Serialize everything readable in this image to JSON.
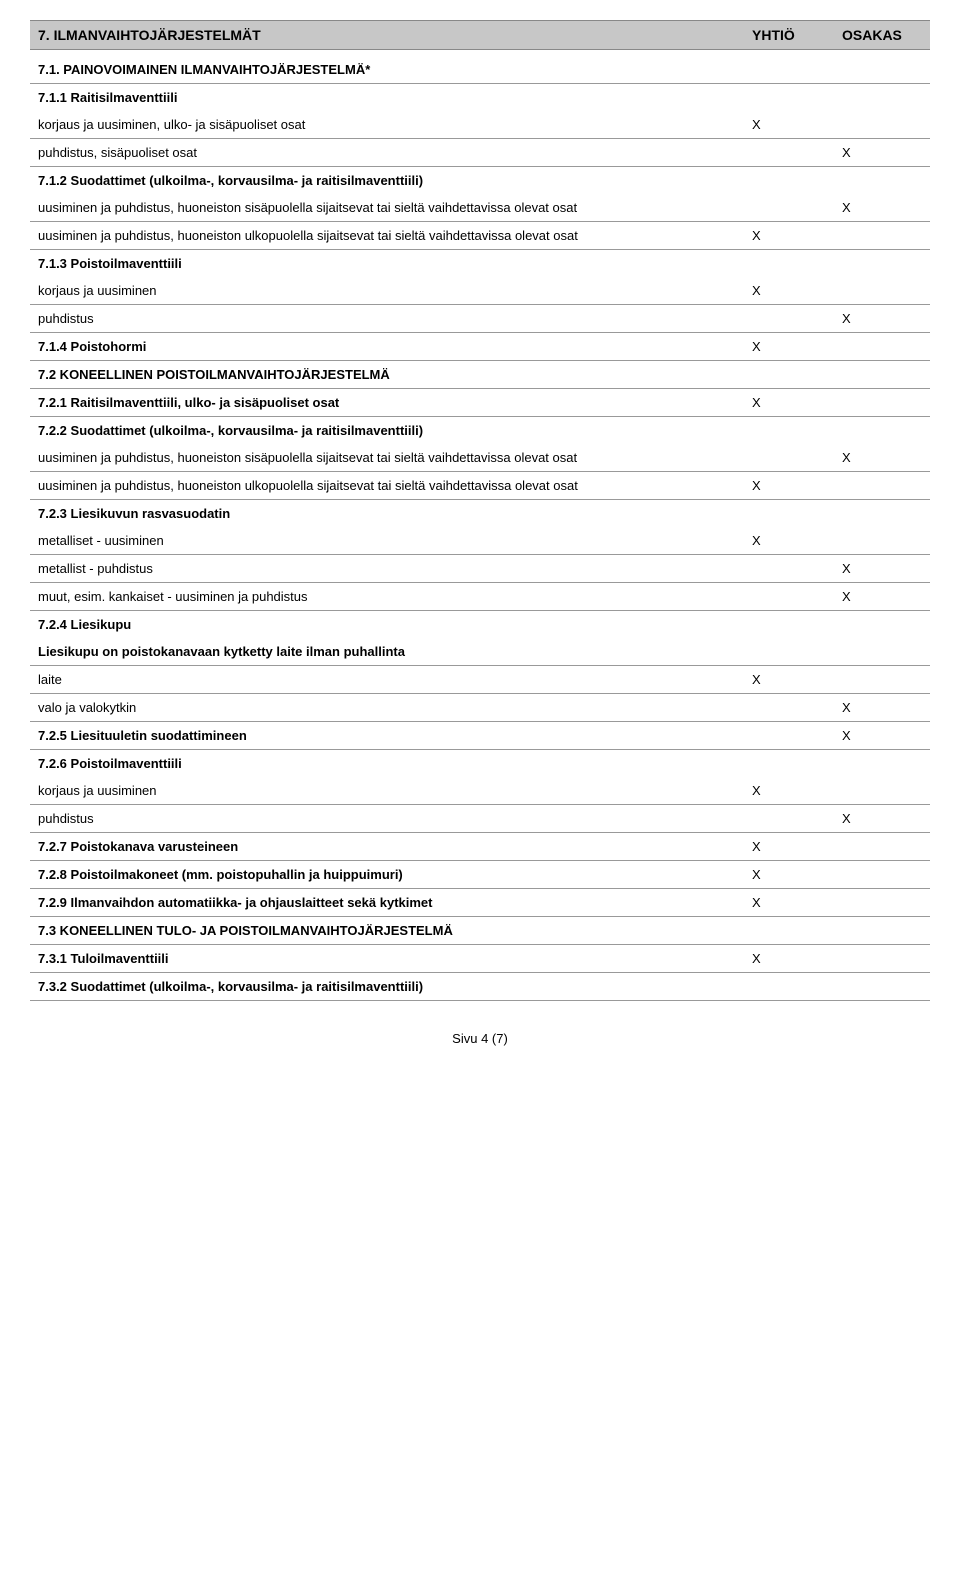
{
  "header": {
    "title": "7.  ILMANVAIHTOJÄRJESTELMÄT",
    "col_y": "YHTIÖ",
    "col_o": "OSAKAS"
  },
  "s71": {
    "title": "7.1. PAINOVOIMAINEN ILMANVAIHTOJÄRJESTELMÄ*"
  },
  "s711": {
    "title": "7.1.1 Raitisilmaventtiili",
    "r1": {
      "label": "korjaus ja uusiminen, ulko- ja sisäpuoliset osat",
      "y": "X",
      "o": ""
    },
    "r2": {
      "label": "puhdistus, sisäpuoliset osat",
      "y": "",
      "o": "X"
    }
  },
  "s712": {
    "title": "7.1.2 Suodattimet (ulkoilma-, korvausilma- ja raitisilmaventtiili)",
    "r1": {
      "label": "uusiminen ja puhdistus, huoneiston sisäpuolella sijaitsevat tai sieltä vaihdettavissa olevat osat",
      "y": "",
      "o": "X"
    },
    "r2": {
      "label": "uusiminen ja puhdistus, huoneiston ulkopuolella sijaitsevat tai sieltä vaihdettavissa olevat osat",
      "y": "X",
      "o": ""
    }
  },
  "s713": {
    "title": "7.1.3 Poistoilmaventtiili",
    "r1": {
      "label": "korjaus ja uusiminen",
      "y": "X",
      "o": ""
    },
    "r2": {
      "label": "puhdistus",
      "y": "",
      "o": "X"
    }
  },
  "s714": {
    "label": "7.1.4 Poistohormi",
    "y": "X",
    "o": ""
  },
  "s72": {
    "title": "7.2 KONEELLINEN POISTOILMANVAIHTOJÄRJESTELMÄ"
  },
  "s721": {
    "label": "7.2.1 Raitisilmaventtiili, ulko- ja sisäpuoliset osat",
    "y": "X",
    "o": ""
  },
  "s722": {
    "title": "7.2.2 Suodattimet (ulkoilma-, korvausilma- ja raitisilmaventtiili)",
    "r1": {
      "label": "uusiminen ja puhdistus, huoneiston sisäpuolella sijaitsevat tai sieltä vaihdettavissa olevat osat",
      "y": "",
      "o": "X"
    },
    "r2": {
      "label": "uusiminen ja puhdistus, huoneiston ulkopuolella sijaitsevat tai sieltä vaihdettavissa olevat osat",
      "y": "X",
      "o": ""
    }
  },
  "s723": {
    "title": "7.2.3 Liesikuvun rasvasuodatin",
    "r1": {
      "label": "metalliset - uusiminen",
      "y": "X",
      "o": ""
    },
    "r2": {
      "label": "metallist - puhdistus",
      "y": "",
      "o": "X"
    },
    "r3": {
      "label": "muut, esim. kankaiset - uusiminen ja puhdistus",
      "y": "",
      "o": "X"
    }
  },
  "s724": {
    "title": "7.2.4 Liesikupu",
    "sub": "Liesikupu on poistokanavaan kytketty laite ilman puhallinta",
    "r1": {
      "label": "laite",
      "y": "X",
      "o": ""
    },
    "r2": {
      "label": "valo ja valokytkin",
      "y": "",
      "o": "X"
    }
  },
  "s725": {
    "label": "7.2.5 Liesituuletin suodattimineen",
    "y": "",
    "o": "X"
  },
  "s726": {
    "title": "7.2.6 Poistoilmaventtiili",
    "r1": {
      "label": "korjaus ja uusiminen",
      "y": "X",
      "o": ""
    },
    "r2": {
      "label": "puhdistus",
      "y": "",
      "o": "X"
    }
  },
  "s727": {
    "label": "7.2.7 Poistokanava varusteineen",
    "y": "X",
    "o": ""
  },
  "s728": {
    "label": "7.2.8 Poistoilmakoneet (mm. poistopuhallin ja huippuimuri)",
    "y": "X",
    "o": ""
  },
  "s729": {
    "label": "7.2.9 Ilmanvaihdon automatiikka- ja ohjauslaitteet sekä kytkimet",
    "y": "X",
    "o": ""
  },
  "s73": {
    "title": "7.3 KONEELLINEN TULO- JA POISTOILMANVAIHTOJÄRJESTELMÄ"
  },
  "s731": {
    "label": "7.3.1 Tuloilmaventtiili",
    "y": "X",
    "o": ""
  },
  "s732": {
    "title": "7.3.2 Suodattimet (ulkoilma-, korvausilma- ja raitisilmaventtiili)"
  },
  "footer": "Sivu 4 (7)"
}
